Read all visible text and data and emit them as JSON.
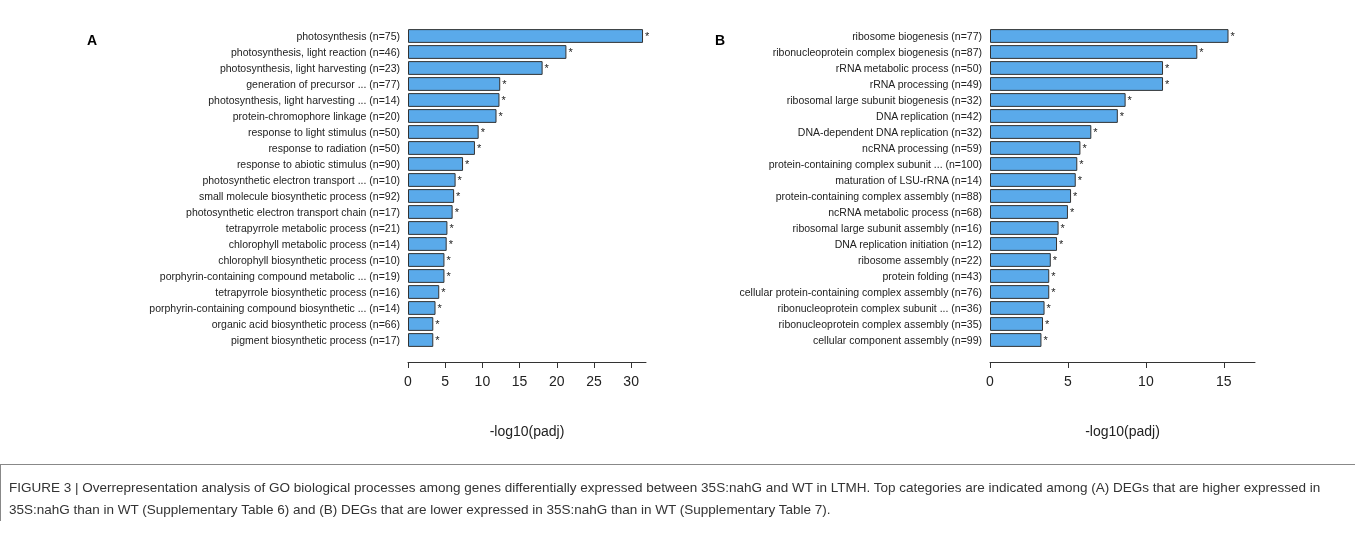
{
  "chart_data": [
    {
      "type": "bar",
      "orientation": "horizontal",
      "title": "A",
      "xlabel": "-log10(padj)",
      "categories": [
        "photosynthesis (n=75)",
        "photosynthesis, light reaction (n=46)",
        "photosynthesis, light harvesting (n=23)",
        "generation of precursor ... (n=77)",
        "photosynthesis, light harvesting ... (n=14)",
        "protein-chromophore linkage (n=20)",
        "response to light stimulus (n=50)",
        "response to radiation (n=50)",
        "response to abiotic stimulus (n=90)",
        "photosynthetic electron transport ... (n=10)",
        "small molecule biosynthetic process (n=92)",
        "photosynthetic electron transport chain (n=17)",
        "tetrapyrrole metabolic process (n=21)",
        "chlorophyll metabolic process (n=14)",
        "chlorophyll biosynthetic process (n=10)",
        "porphyrin-containing compound metabolic ... (n=19)",
        "tetrapyrrole biosynthetic process (n=16)",
        "porphyrin-containing compound biosynthetic ... (n=14)",
        "organic acid biosynthetic process (n=66)",
        "pigment biosynthetic process (n=17)"
      ],
      "values": [
        31.6,
        21.3,
        18.1,
        12.4,
        12.3,
        11.9,
        9.5,
        9.0,
        7.4,
        6.4,
        6.2,
        6.0,
        5.3,
        5.2,
        4.9,
        4.9,
        4.2,
        3.7,
        3.4,
        3.4
      ],
      "value_labels": [
        "*",
        "*",
        "*",
        "*",
        "*",
        "*",
        "*",
        "*",
        "*",
        "*",
        "*",
        "*",
        "*",
        "*",
        "*",
        "*",
        "*",
        "*",
        "*",
        "*"
      ],
      "color": "#5aaaea",
      "xlim": [
        0,
        32
      ],
      "xticks": [
        0,
        5,
        10,
        15,
        20,
        25,
        30
      ],
      "grid": false
    },
    {
      "type": "bar",
      "orientation": "horizontal",
      "title": "B",
      "xlabel": "-log10(padj)",
      "categories": [
        "ribosome biogenesis (n=77)",
        "ribonucleoprotein complex biogenesis (n=87)",
        "rRNA metabolic process (n=50)",
        "rRNA processing (n=49)",
        "ribosomal large subunit biogenesis (n=32)",
        "DNA replication (n=42)",
        "DNA-dependent DNA replication (n=32)",
        "ncRNA processing (n=59)",
        "protein-containing complex subunit ... (n=100)",
        "maturation of LSU-rRNA (n=14)",
        "protein-containing complex assembly (n=88)",
        "ncRNA metabolic process (n=68)",
        "ribosomal large subunit assembly (n=16)",
        "DNA replication initiation (n=12)",
        "ribosome assembly (n=22)",
        "protein folding (n=43)",
        "cellular protein-containing complex assembly (n=76)",
        "ribonucleoprotein complex subunit ... (n=36)",
        "ribonucleoprotein complex assembly (n=35)",
        "cellular component assembly (n=99)"
      ],
      "values": [
        15.3,
        13.3,
        11.1,
        11.1,
        8.7,
        8.2,
        6.5,
        5.8,
        5.6,
        5.5,
        5.2,
        5.0,
        4.4,
        4.3,
        3.9,
        3.8,
        3.8,
        3.5,
        3.4,
        3.3
      ],
      "value_labels": [
        "*",
        "*",
        "*",
        "*",
        "*",
        "*",
        "*",
        "*",
        "*",
        "*",
        "*",
        "*",
        "*",
        "*",
        "*",
        "*",
        "*",
        "*",
        "*",
        "*"
      ],
      "color": "#5aaaea",
      "xlim": [
        0,
        17
      ],
      "xticks": [
        0,
        5,
        10,
        15
      ],
      "grid": false,
      "annotations": [
        "FIGURE 3 | Overrepresentation analysis of GO biological processes among genes differentially expressed between 35S:nahG and WT in LTMH. Top categories are indicated among (A) DEGs that are higher expressed in 35S:nahG than in WT (Supplementary Table 6) and (B) DEGs that are lower expressed in 35S:nahG than in WT (Supplementary Table 7)."
      ]
    }
  ]
}
